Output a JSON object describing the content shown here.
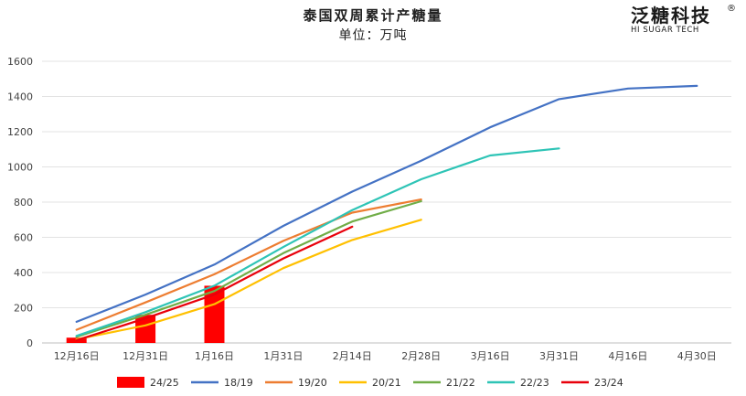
{
  "chart_data": {
    "type": "line",
    "title": "泰国双周累计产糖量",
    "subtitle": "单位：万吨",
    "categories": [
      "12月16日",
      "12月31日",
      "1月16日",
      "1月31日",
      "2月14日",
      "2月28日",
      "3月16日",
      "3月31日",
      "4月16日",
      "4月30日"
    ],
    "ylim": [
      0,
      1600
    ],
    "yticks": [
      0,
      200,
      400,
      600,
      800,
      1000,
      1200,
      1400,
      1600
    ],
    "grid": true,
    "legend_position": "bottom",
    "bar_series": {
      "name": "24/25",
      "color": "#ff0000",
      "values": [
        30,
        160,
        325,
        null,
        null,
        null,
        null,
        null,
        null,
        null
      ]
    },
    "series": [
      {
        "name": "18/19",
        "color": "#4472c4",
        "values": [
          120,
          275,
          445,
          665,
          860,
          1035,
          1225,
          1385,
          1445,
          1460
        ]
      },
      {
        "name": "19/20",
        "color": "#ed7d31",
        "values": [
          75,
          230,
          390,
          580,
          740,
          815,
          null,
          null,
          null,
          null
        ]
      },
      {
        "name": "20/21",
        "color": "#ffc000",
        "values": [
          20,
          100,
          220,
          425,
          585,
          700,
          null,
          null,
          null,
          null
        ]
      },
      {
        "name": "21/22",
        "color": "#70ad47",
        "values": [
          35,
          160,
          295,
          510,
          690,
          805,
          null,
          null,
          null,
          null
        ]
      },
      {
        "name": "22/23",
        "color": "#2ec4b6",
        "values": [
          40,
          175,
          325,
          545,
          755,
          930,
          1065,
          1105,
          null,
          null
        ]
      },
      {
        "name": "23/24",
        "color": "#e8000b",
        "values": [
          15,
          140,
          275,
          480,
          660,
          null,
          null,
          null,
          null,
          null
        ]
      }
    ]
  },
  "logo": {
    "main": "泛糖科技",
    "registered": "®",
    "sub": "HI SUGAR TECH"
  }
}
